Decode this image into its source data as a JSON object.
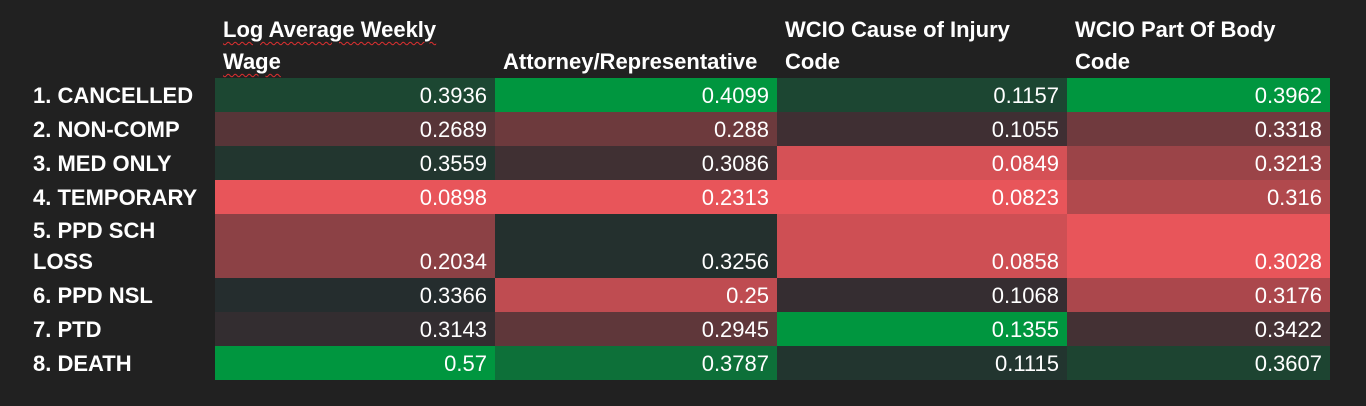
{
  "chart_data": {
    "type": "heatmap",
    "columns": [
      "Log Average Weekly Wage",
      "Attorney/Representative",
      "WCIO Cause of Injury Code",
      "WCIO Part Of Body Code"
    ],
    "rows": [
      "1. CANCELLED",
      "2. NON-COMP",
      "3. MED ONLY",
      "4. TEMPORARY",
      "5. PPD SCH LOSS",
      "6. PPD NSL",
      "7. PTD",
      "8. DEATH"
    ],
    "values": [
      [
        0.3936,
        0.4099,
        0.1157,
        0.3962
      ],
      [
        0.2689,
        0.288,
        0.1055,
        0.3318
      ],
      [
        0.3559,
        0.3086,
        0.0849,
        0.3213
      ],
      [
        0.0898,
        0.2313,
        0.0823,
        0.316
      ],
      [
        0.2034,
        0.3256,
        0.0858,
        0.3028
      ],
      [
        0.3366,
        0.25,
        0.1068,
        0.3176
      ],
      [
        0.3143,
        0.2945,
        0.1355,
        0.3422
      ],
      [
        0.57,
        0.3787,
        0.1115,
        0.3607
      ]
    ],
    "value_labels": [
      [
        "0.3936",
        "0.4099",
        "0.1157",
        "0.3962"
      ],
      [
        "0.2689",
        "0.288",
        "0.1055",
        "0.3318"
      ],
      [
        "0.3559",
        "0.3086",
        "0.0849",
        "0.3213"
      ],
      [
        "0.0898",
        "0.2313",
        "0.0823",
        "0.316"
      ],
      [
        "0.2034",
        "0.3256",
        "0.0858",
        "0.3028"
      ],
      [
        "0.3366",
        "0.25",
        "0.1068",
        "0.3176"
      ],
      [
        "0.3143",
        "0.2945",
        "0.1355",
        "0.3422"
      ],
      [
        "0.57",
        "0.3787",
        "0.1115",
        "0.3607"
      ]
    ],
    "color_scale": {
      "low": "#e8555a",
      "mid": "#262a2d",
      "high": "#00963f"
    },
    "scaling": "per-column"
  }
}
